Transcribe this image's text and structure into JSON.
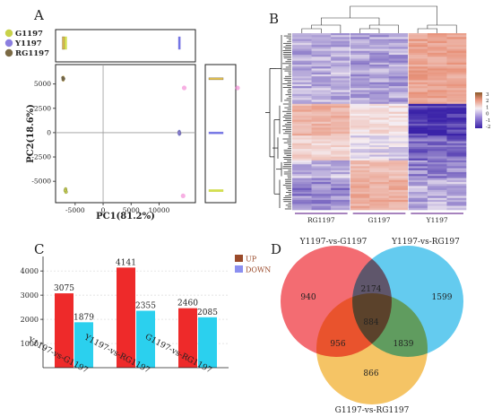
{
  "figure": {
    "panels": [
      {
        "letter": "A"
      },
      {
        "letter": "B"
      },
      {
        "letter": "C"
      },
      {
        "letter": "D"
      }
    ]
  },
  "chart_data": [
    {
      "panel": "A",
      "type": "scatter",
      "xlabel": "PC1(81.2%)",
      "ylabel": "PC2(18.6%)",
      "xlim": [
        -8500,
        16500
      ],
      "ylim": [
        -7200,
        7000
      ],
      "xticks": [
        -5000,
        0,
        5000,
        10000
      ],
      "yticks": [
        5000,
        2500,
        0,
        -2500,
        -5000
      ],
      "xtick_labels": [
        "-5000",
        "0",
        "5000",
        "10000"
      ],
      "ytick_labels": [
        "5000",
        "2500",
        "0",
        "-2500",
        "-5000"
      ],
      "series": [
        {
          "name": "G1197",
          "color": "#c8d24a",
          "points": [
            [
              -6700,
              -5800
            ],
            [
              -6600,
              -6100
            ],
            [
              -6800,
              -5950
            ]
          ]
        },
        {
          "name": "Y1197",
          "color": "#8b7fe0",
          "points": [
            [
              13600,
              60
            ],
            [
              13700,
              -100
            ],
            [
              13550,
              -20
            ]
          ]
        },
        {
          "name": "RG1197",
          "color": "#7b6a45",
          "points": [
            [
              -7200,
              5650
            ],
            [
              -7050,
              5550
            ],
            [
              -7150,
              5450
            ]
          ]
        }
      ],
      "ellipses": [
        {
          "color": "#d4e14a",
          "cx": -6700,
          "cy": -5950,
          "rx": 320,
          "ry": 350
        },
        {
          "color": "#6f74e6",
          "cx": 13620,
          "cy": -20,
          "rx": 300,
          "ry": 320
        },
        {
          "color": "#e3bf4a",
          "cx": -7130,
          "cy": 5550,
          "rx": 300,
          "ry": 320
        }
      ],
      "legend": {
        "position": "top-left"
      },
      "grid": false
    },
    {
      "panel": "B",
      "type": "heatmap",
      "columns": [
        "RG1197",
        "G1197",
        "Y1197"
      ],
      "scale_min": -2,
      "scale_max": 3,
      "scale_ticks": [
        "3",
        "2",
        "1",
        "0",
        "-1",
        "-2"
      ],
      "colors": {
        "low": "#3a22a8",
        "mid": "#f5eef3",
        "high": "#e8927a",
        "top": "#8a5a2a"
      },
      "bands": [
        {
          "fraction": 0.4,
          "values": [
            -0.6,
            -0.7,
            1.6
          ]
        },
        {
          "fraction": 0.18,
          "values": [
            1.3,
            0.4,
            -1.8
          ]
        },
        {
          "fraction": 0.14,
          "values": [
            0.6,
            -0.2,
            -1.3
          ]
        },
        {
          "fraction": 0.1,
          "values": [
            -0.5,
            1.0,
            -1.0
          ]
        },
        {
          "fraction": 0.18,
          "values": [
            -1.0,
            1.4,
            -0.6
          ]
        }
      ]
    },
    {
      "panel": "C",
      "type": "bar",
      "categories": [
        "Y1197-vs-G1197",
        "Y1197-vs-RG1197",
        "G1197-vs-RG1197"
      ],
      "series": [
        {
          "name": "UP",
          "values": [
            3075,
            4141,
            2460
          ],
          "color": "#ee2a2a",
          "legend_color": "#9a4a2a"
        },
        {
          "name": "DOWN",
          "values": [
            1879,
            2355,
            2085
          ],
          "color": "#2bd0ee",
          "legend_color": "#8b8ff0"
        }
      ],
      "value_labels": [
        "3075",
        "1879",
        "4141",
        "2355",
        "2460",
        "2085"
      ],
      "ylim": [
        0,
        4600
      ],
      "yticks": [
        1000,
        2000,
        3000,
        4000
      ],
      "ytick_labels": [
        "1000",
        "2000",
        "3000",
        "4000"
      ],
      "legend": {
        "position": "top-right"
      },
      "grid": true
    },
    {
      "panel": "D",
      "type": "venn",
      "sets": [
        {
          "name": "Y1197-vs-G1197",
          "color": "#f0424a"
        },
        {
          "name": "Y1197-vs-RG197",
          "color": "#38bdea"
        },
        {
          "name": "G1197-vs-RG1197",
          "color": "#f2b43a"
        }
      ],
      "regions": [
        {
          "label": "940",
          "sets": [
            "Y1197-vs-G1197"
          ]
        },
        {
          "label": "2174",
          "sets": [
            "Y1197-vs-G1197",
            "Y1197-vs-RG197"
          ]
        },
        {
          "label": "1599",
          "sets": [
            "Y1197-vs-RG197"
          ]
        },
        {
          "label": "884",
          "sets": [
            "Y1197-vs-G1197",
            "Y1197-vs-RG197",
            "G1197-vs-RG1197"
          ]
        },
        {
          "label": "956",
          "sets": [
            "Y1197-vs-G1197",
            "G1197-vs-RG1197"
          ]
        },
        {
          "label": "1839",
          "sets": [
            "Y1197-vs-RG197",
            "G1197-vs-RG1197"
          ]
        },
        {
          "label": "866",
          "sets": [
            "G1197-vs-RG1197"
          ]
        }
      ]
    }
  ]
}
